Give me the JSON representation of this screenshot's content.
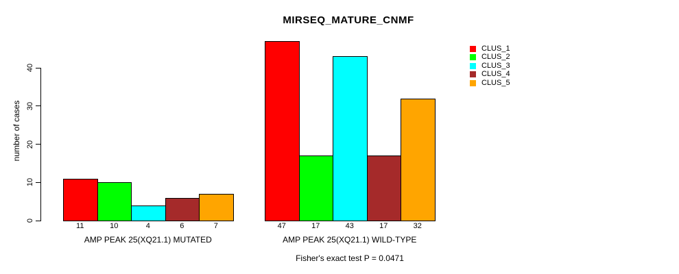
{
  "title": "MIRSEQ_MATURE_CNMF",
  "y_axis": {
    "label": "number of cases",
    "ticks": [
      "0",
      "10",
      "20",
      "30",
      "40"
    ]
  },
  "footer": "Fisher's exact test P = 0.0471",
  "legend": {
    "items": [
      {
        "label": "CLUS_1",
        "color": "#FF0000"
      },
      {
        "label": "CLUS_2",
        "color": "#00FF00"
      },
      {
        "label": "CLUS_3",
        "color": "#00FFFF"
      },
      {
        "label": "CLUS_4",
        "color": "#A52A2A"
      },
      {
        "label": "CLUS_5",
        "color": "#FFA500"
      }
    ]
  },
  "chart_data": {
    "type": "bar",
    "title": "MIRSEQ_MATURE_CNMF",
    "xlabel": "",
    "ylabel": "number of cases",
    "ylim": [
      0,
      47
    ],
    "yticks": [
      0,
      10,
      20,
      30,
      40
    ],
    "grid": false,
    "legend_position": "top-right",
    "bar_value_labels": true,
    "categories": [
      "AMP PEAK 25(XQ21.1) MUTATED",
      "AMP PEAK 25(XQ21.1) WILD-TYPE"
    ],
    "series": [
      {
        "name": "CLUS_1",
        "color": "#FF0000",
        "values": [
          11,
          47
        ]
      },
      {
        "name": "CLUS_2",
        "color": "#00FF00",
        "values": [
          10,
          17
        ]
      },
      {
        "name": "CLUS_3",
        "color": "#00FFFF",
        "values": [
          4,
          43
        ]
      },
      {
        "name": "CLUS_4",
        "color": "#A52A2A",
        "values": [
          6,
          17
        ]
      },
      {
        "name": "CLUS_5",
        "color": "#FFA500",
        "values": [
          7,
          32
        ]
      }
    ],
    "annotation": "Fisher's exact test P = 0.0471"
  }
}
